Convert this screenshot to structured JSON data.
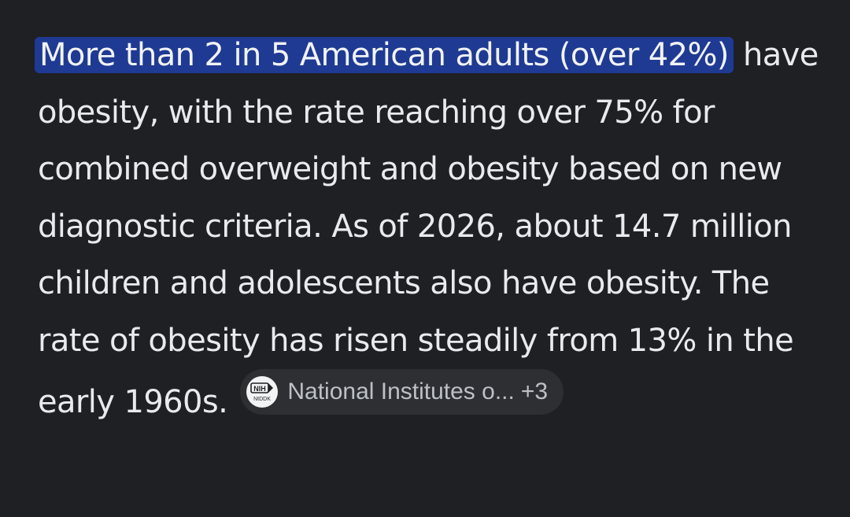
{
  "answer": {
    "highlighted_text": "More than 2 in 5 American adults (over 42%)",
    "body_text": " have obesity, with the rate reaching over 75% for combined overweight and obesity based on new diagnostic criteria. As of 2026, about 14.7 million children and adolescents also have obesity. The rate of obesity has risen steadily from 13% in the early 1960s. "
  },
  "source_chip": {
    "label": "National Institutes o...",
    "count": "+3",
    "icon": "nih-niddk-logo-icon",
    "logo_text_top": "NIH",
    "logo_text_bottom": "NIDDK"
  },
  "colors": {
    "background": "#1f2023",
    "text": "#e8eaed",
    "highlight": "#1f3a93",
    "chip_background": "#2d2f32"
  }
}
